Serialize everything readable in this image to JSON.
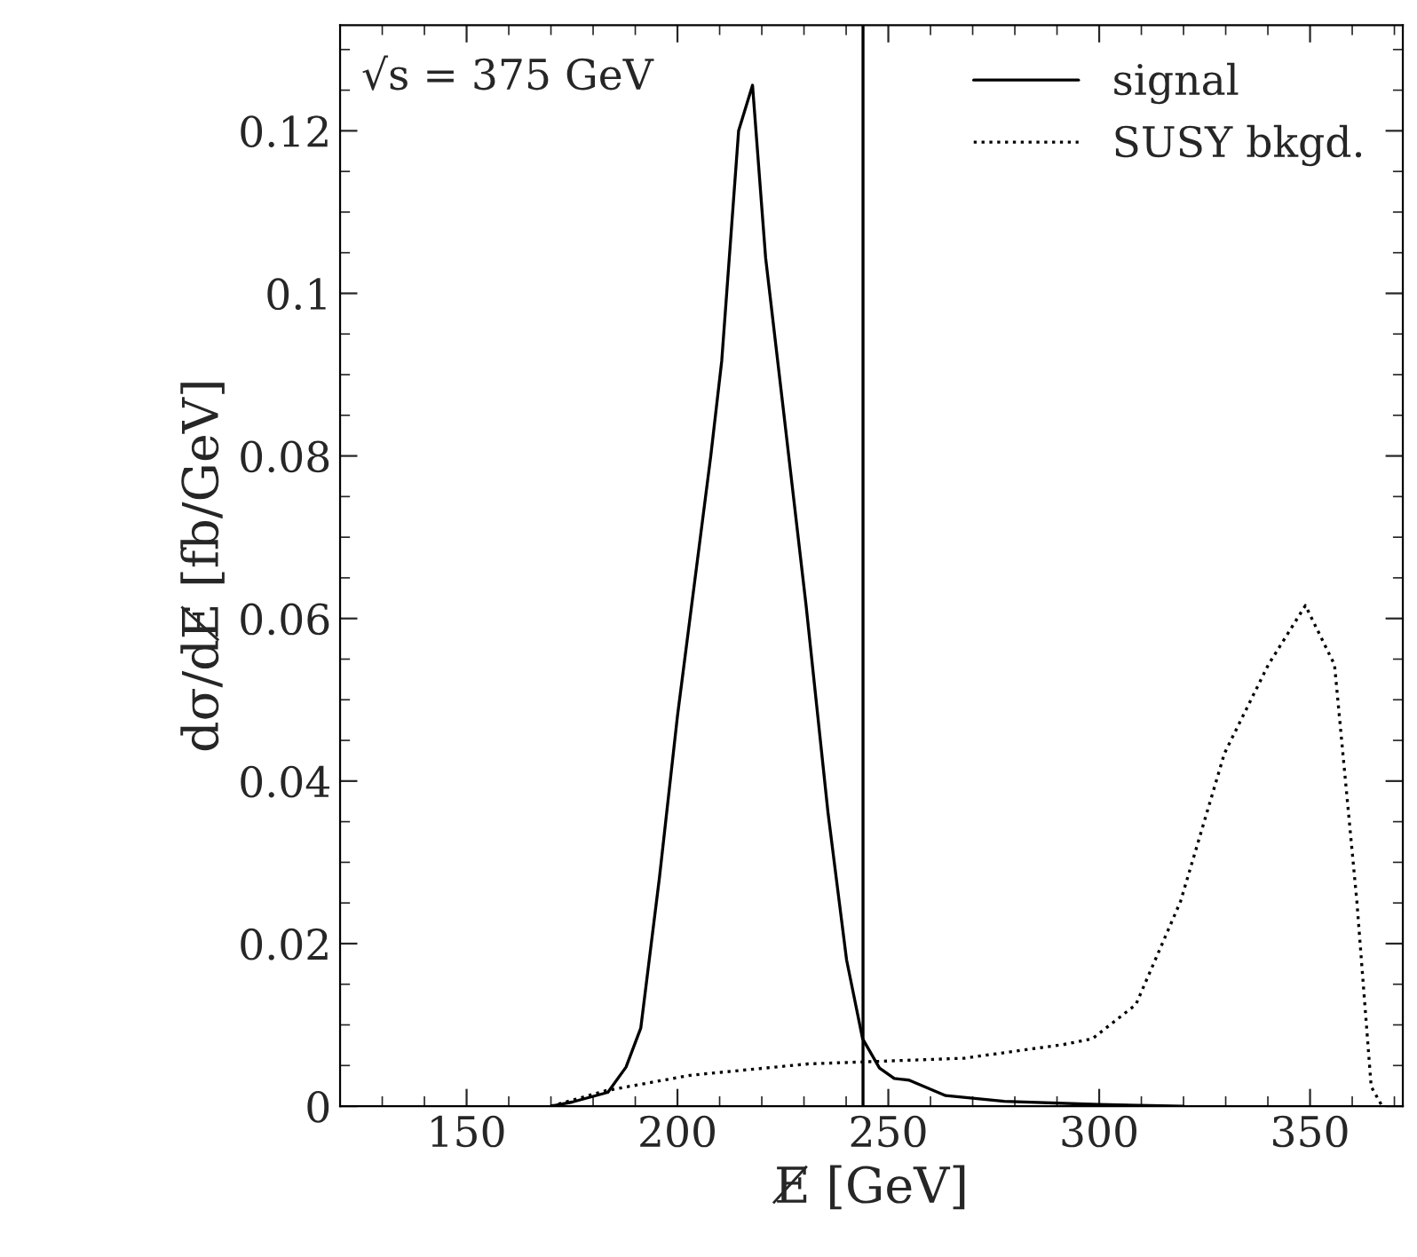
{
  "chart_data": {
    "type": "line",
    "xlabel": "E̸ [GeV]",
    "ylabel": "dσ/dE̸ [fb/GeV]",
    "annotations": [
      "√s = 375 GeV"
    ],
    "xlim": [
      120,
      372
    ],
    "xticks": [
      150,
      200,
      250,
      300,
      350
    ],
    "ylim": [
      0,
      0.133
    ],
    "yticks": [
      0,
      0.02,
      0.04,
      0.06,
      0.08,
      0.1,
      0.12
    ],
    "grid": false,
    "legend": "top right",
    "marker": "none",
    "ref_lines": [
      {
        "axis": "x",
        "value": 244,
        "color": "#000000"
      }
    ],
    "series": [
      {
        "name": "signal",
        "color": "#000000",
        "line_style": "solid",
        "x": [
          170,
          175,
          183.5,
          187.8,
          191.3,
          195.7,
          200,
          207.9,
          210.5,
          214.5,
          217.8,
          220.9,
          225.2,
          230.5,
          235.7,
          240.1,
          243.9,
          247.9,
          251.4,
          254.9,
          263.6,
          277.5,
          300,
          320
        ],
        "values": [
          0,
          0.0005,
          0.0017,
          0.0048,
          0.0096,
          0.028,
          0.048,
          0.08,
          0.0917,
          0.12,
          0.1256,
          0.1044,
          0.0853,
          0.0616,
          0.0361,
          0.018,
          0.0083,
          0.0047,
          0.0034,
          0.0032,
          0.0013,
          0.0006,
          0.0002,
          0
        ]
      },
      {
        "name": "SUSY bkgd.",
        "color": "#000000",
        "line_style": "dotted",
        "x": [
          170,
          183,
          203,
          231,
          268,
          291.7,
          298.4,
          308.7,
          319.3,
          329.7,
          340.1,
          348.9,
          355.8,
          361.1,
          364.5,
          367.1
        ],
        "values": [
          0,
          0.0019,
          0.0038,
          0.0052,
          0.0059,
          0.0076,
          0.0083,
          0.0125,
          0.0252,
          0.0434,
          0.0543,
          0.0616,
          0.0543,
          0.0252,
          0.0024,
          0
        ]
      }
    ]
  }
}
